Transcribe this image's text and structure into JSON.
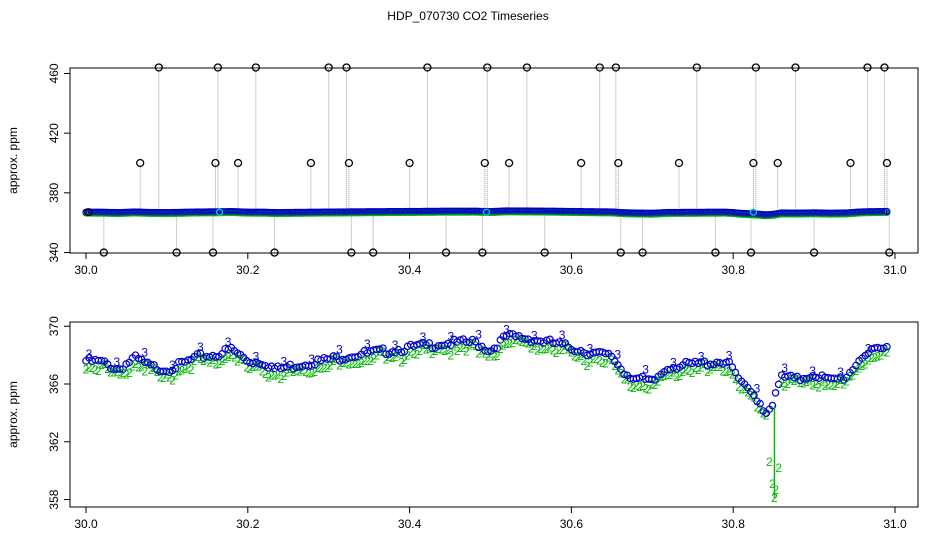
{
  "title": "HDP_070730  CO2 Timeseries",
  "colors": {
    "series1": "#0000cc",
    "series2": "#00bb00",
    "outlier": "#000000",
    "spike": "#999999",
    "highlight": "#00cccc"
  },
  "chart_data": [
    {
      "type": "scatter",
      "ylabel": "approx. ppm",
      "xlim": [
        30.0,
        31.0
      ],
      "ylim": [
        335,
        465
      ],
      "xticks": [
        "30.0",
        "30.2",
        "30.4",
        "30.6",
        "30.8",
        "31.0"
      ],
      "yticks": [
        "340",
        "380",
        "420",
        "460"
      ],
      "baseline": 367,
      "outliers": [
        {
          "x": 30.003,
          "y": 367
        },
        {
          "x": 30.022,
          "y": 340
        },
        {
          "x": 30.067,
          "y": 400
        },
        {
          "x": 30.09,
          "y": 464
        },
        {
          "x": 30.112,
          "y": 340
        },
        {
          "x": 30.157,
          "y": 340
        },
        {
          "x": 30.16,
          "y": 400
        },
        {
          "x": 30.163,
          "y": 464
        },
        {
          "x": 30.188,
          "y": 400
        },
        {
          "x": 30.21,
          "y": 464
        },
        {
          "x": 30.233,
          "y": 340
        },
        {
          "x": 30.278,
          "y": 400
        },
        {
          "x": 30.3,
          "y": 464
        },
        {
          "x": 30.322,
          "y": 464
        },
        {
          "x": 30.325,
          "y": 400
        },
        {
          "x": 30.328,
          "y": 340
        },
        {
          "x": 30.355,
          "y": 340
        },
        {
          "x": 30.4,
          "y": 400
        },
        {
          "x": 30.422,
          "y": 464
        },
        {
          "x": 30.445,
          "y": 340
        },
        {
          "x": 30.49,
          "y": 340
        },
        {
          "x": 30.493,
          "y": 400
        },
        {
          "x": 30.496,
          "y": 464
        },
        {
          "x": 30.523,
          "y": 400
        },
        {
          "x": 30.545,
          "y": 464
        },
        {
          "x": 30.567,
          "y": 340
        },
        {
          "x": 30.612,
          "y": 400
        },
        {
          "x": 30.635,
          "y": 464
        },
        {
          "x": 30.655,
          "y": 464
        },
        {
          "x": 30.658,
          "y": 400
        },
        {
          "x": 30.661,
          "y": 340
        },
        {
          "x": 30.688,
          "y": 340
        },
        {
          "x": 30.733,
          "y": 400
        },
        {
          "x": 30.755,
          "y": 464
        },
        {
          "x": 30.778,
          "y": 340
        },
        {
          "x": 30.822,
          "y": 340
        },
        {
          "x": 30.825,
          "y": 400
        },
        {
          "x": 30.828,
          "y": 464
        },
        {
          "x": 30.855,
          "y": 400
        },
        {
          "x": 30.877,
          "y": 464
        },
        {
          "x": 30.9,
          "y": 340
        },
        {
          "x": 30.945,
          "y": 400
        },
        {
          "x": 30.966,
          "y": 464
        },
        {
          "x": 30.987,
          "y": 464
        },
        {
          "x": 30.99,
          "y": 400
        },
        {
          "x": 30.993,
          "y": 340
        }
      ]
    },
    {
      "type": "scatter",
      "ylabel": "approx. ppm",
      "xlim": [
        30.0,
        31.0
      ],
      "ylim": [
        357,
        370.5
      ],
      "xticks": [
        "30.0",
        "30.2",
        "30.4",
        "30.6",
        "30.8",
        "31.0"
      ],
      "yticks": [
        "358",
        "362",
        "366",
        "370"
      ],
      "series": [
        {
          "name": "3",
          "profile_x": [
            30.0,
            30.02,
            30.04,
            30.06,
            30.08,
            30.1,
            30.12,
            30.14,
            30.16,
            30.18,
            30.2,
            30.22,
            30.235,
            30.26,
            30.3,
            30.33,
            30.36,
            30.4,
            30.44,
            30.48,
            30.5,
            30.52,
            30.54,
            30.58,
            30.62,
            30.65,
            30.665,
            30.68,
            30.7,
            30.72,
            30.76,
            30.79,
            30.8,
            30.81,
            30.82,
            30.83,
            30.84,
            30.85,
            30.86,
            30.88,
            30.9,
            30.92,
            30.94,
            30.96,
            30.99
          ],
          "profile_y": [
            367.6,
            367.5,
            367.0,
            367.8,
            367.2,
            367.0,
            367.4,
            367.9,
            368.0,
            368.4,
            367.6,
            367.5,
            367.0,
            367.3,
            367.7,
            368.0,
            368.2,
            368.5,
            368.8,
            368.9,
            368.3,
            369.3,
            369.2,
            368.8,
            368.2,
            367.9,
            366.8,
            366.4,
            366.1,
            367.2,
            367.4,
            367.6,
            367.0,
            366.0,
            365.5,
            365.0,
            364.0,
            364.8,
            366.5,
            366.3,
            366.7,
            366.2,
            366.5,
            368.0,
            368.5
          ]
        },
        {
          "name": "2",
          "offset": -0.45,
          "dip": {
            "x": 30.851,
            "y": 358.1
          }
        }
      ]
    }
  ]
}
